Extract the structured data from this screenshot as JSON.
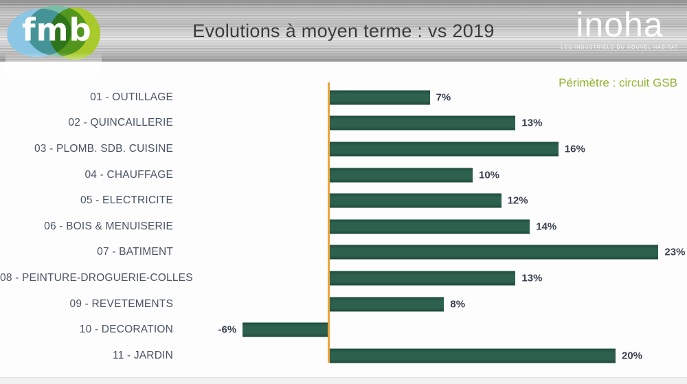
{
  "header": {
    "title": "Evolutions à moyen terme : vs 2019",
    "fmb_logo_text": "fmb",
    "inoha_logo_text": "inoha",
    "inoha_tagline": "LES INDUSTRIELS DU NOUVEL HABITAT"
  },
  "chart_data": {
    "type": "bar",
    "orientation": "horizontal",
    "title": "Evolutions à moyen terme : vs 2019",
    "annotation": "Périmètre : circuit GSB",
    "categories": [
      "01 - OUTILLAGE",
      "02 - QUINCAILLERIE",
      "03 - PLOMB. SDB. CUISINE",
      "04 - CHAUFFAGE",
      "05 - ELECTRICITE",
      "06 - BOIS & MENUISERIE",
      "07 - BATIMENT",
      "08 - PEINTURE-DROGUERIE-COLLES",
      "09 - REVETEMENTS",
      "10 - DECORATION",
      "11 - JARDIN"
    ],
    "values": [
      7,
      13,
      16,
      10,
      12,
      14,
      23,
      13,
      8,
      -6,
      20
    ],
    "value_labels": [
      "7%",
      "13%",
      "16%",
      "10%",
      "12%",
      "14%",
      "23%",
      "13%",
      "8%",
      "-6%",
      "20%"
    ],
    "unit": "%",
    "baseline": 0,
    "xlim": [
      -8,
      25
    ],
    "grid": false,
    "legend": false,
    "colors": {
      "bar": "#2B5D4B",
      "axis_line": "#E9A43E",
      "category_label": "#495364",
      "value_label": "#3A4150",
      "annotation_text": "#8FB42E"
    }
  }
}
